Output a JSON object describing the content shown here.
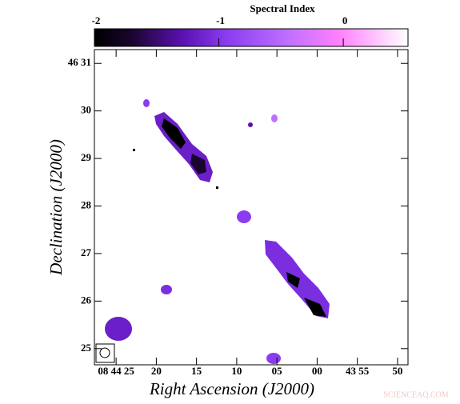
{
  "chart_data": {
    "type": "map",
    "title": "Spectral Index",
    "x_label": "Right Ascension (J2000)",
    "y_label": "Declination (J2000)",
    "colorbar_lim": [
      -2,
      0.52
    ],
    "colorbar_ticks": [
      -2,
      -1,
      0
    ],
    "xlim": [
      87.7,
      48.7
    ],
    "xticks": [
      {
        "value": 85,
        "label": "08 44 25"
      },
      {
        "value": 80,
        "label": "20"
      },
      {
        "value": 75,
        "label": "15"
      },
      {
        "value": 70,
        "label": "10"
      },
      {
        "value": 65,
        "label": "05"
      },
      {
        "value": 60,
        "label": "00"
      },
      {
        "value": 55,
        "label": "43 55"
      },
      {
        "value": 50,
        "label": "50"
      }
    ],
    "ylim": [
      24.66,
      31.29
    ],
    "yticks": [
      {
        "value": 31,
        "label": "46 31"
      },
      30,
      29,
      28,
      27,
      26,
      25
    ],
    "watermark": "SCIENCEAQ.COM"
  }
}
